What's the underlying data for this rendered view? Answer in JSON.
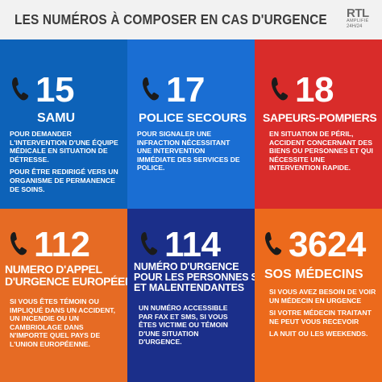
{
  "header": {
    "title": "LES NUMÉROS À COMPOSER EN CAS D'URGENCE",
    "brand_logo": "RTL",
    "brand_sub": "AMPLIFIÉ",
    "brand_247": "24H/24"
  },
  "cards": [
    {
      "number": "15",
      "service": "SAMU",
      "color": "#0d62b8",
      "desc": [
        "POUR DEMANDER L'INTERVENTION D'UNE ÉQUIPE MÉDICALE EN SITUATION DE DÉTRESSE.",
        "POUR ÊTRE REDIRIGÉ VERS UN ORGANISME DE PERMANENCE DE SOINS."
      ]
    },
    {
      "number": "17",
      "service": "POLICE SECOURS",
      "color": "#1a6ed3",
      "desc": [
        "POUR SIGNALER UNE INFRACTION NÉCESSITANT UNE INTERVENTION IMMÉDIATE DES SERVICES DE POLICE."
      ]
    },
    {
      "number": "18",
      "service": "SAPEURS-POMPIERS",
      "color": "#d92c2a",
      "desc": [
        "EN SITUATION DE PÉRIL, ACCIDENT CONCERNANT DES BIENS OU PERSONNES ET QUI NÉCESSITE UNE INTERVENTION RAPIDE."
      ]
    },
    {
      "number": "112",
      "service_line1": "NUMERO D'APPEL",
      "service_line2": "D'URGENCE EUROPÉEN",
      "color": "#e66b24",
      "desc": [
        "SI VOUS ÊTES TÉMOIN OU IMPLIQUÉ DANS UN ACCIDENT, UN INCENDIE OU UN CAMBRIOLAGE DANS N'IMPORTE QUEL PAYS DE L'UNION EUROPÉENNE."
      ]
    },
    {
      "number": "114",
      "service_line1": "NUMÉRO D'URGENCE",
      "service_line2": "POUR LES PERSONNES SOURDES",
      "service_line3": "ET MALENTENDANTES",
      "color": "#1b2f8a",
      "desc": [
        "UN NUMÉRO ACCESSIBLE PAR FAX ET SMS, SI VOUS ÊTES VICTIME OU TÉMOIN D'UNE SITUATION D'URGENCE."
      ]
    },
    {
      "number": "3624",
      "service": "SOS MÉDECINS",
      "color": "#ec6a1c",
      "desc": [
        "SI VOUS AVEZ BESOIN DE VOIR UN MÉDECIN EN URGENCE",
        "SI VOTRE MÉDECIN TRAITANT NE PEUT VOUS RECEVOIR",
        "LA NUIT OU LES WEEKENDS."
      ]
    }
  ]
}
